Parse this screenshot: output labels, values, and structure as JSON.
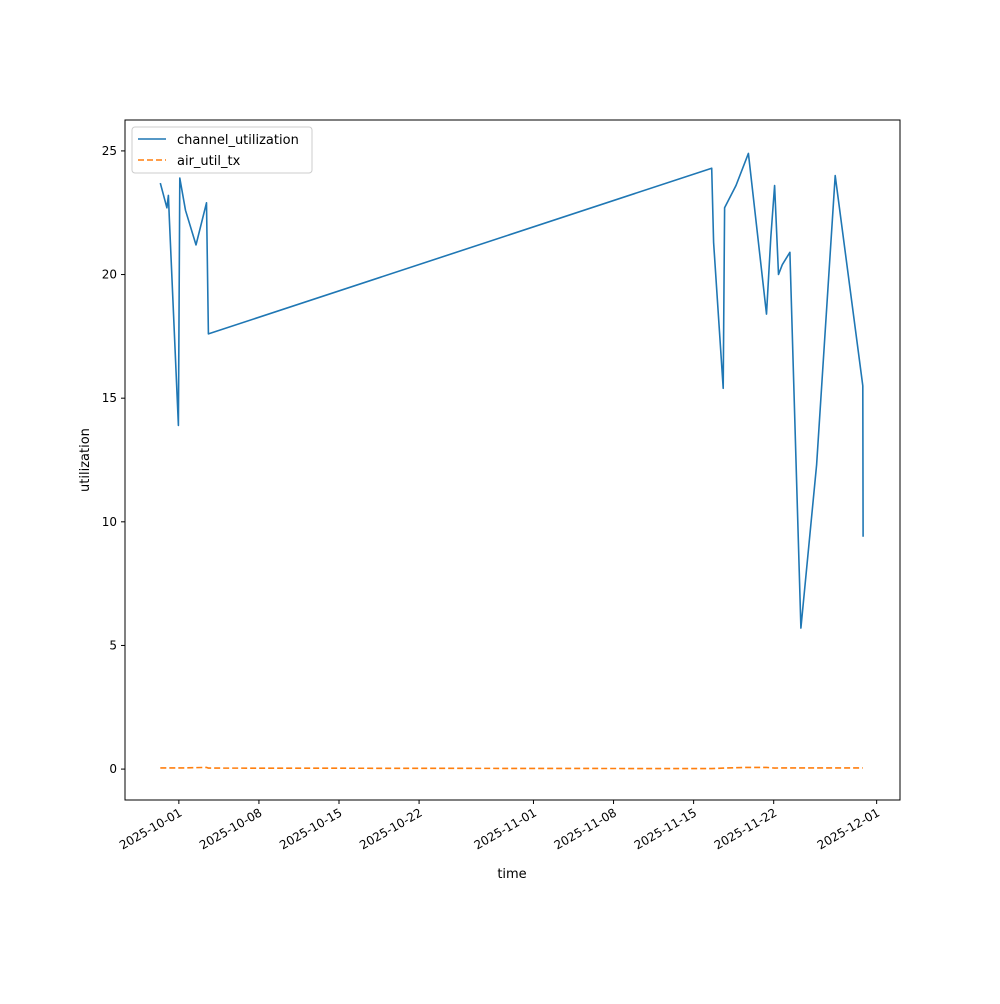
{
  "chart_data": {
    "type": "line",
    "title": "",
    "xlabel": "time",
    "ylabel": "utilization",
    "xlim": [
      "2025-09-26T07:00",
      "2025-12-03T01:00"
    ],
    "ylim": [
      -1.25,
      26.25
    ],
    "grid": false,
    "legend_position": "top-left",
    "x_ticks": [
      "2025-10-01",
      "2025-10-08",
      "2025-10-15",
      "2025-10-22",
      "2025-11-01",
      "2025-11-08",
      "2025-11-15",
      "2025-11-22",
      "2025-12-01"
    ],
    "y_ticks": [
      0,
      5,
      10,
      15,
      20,
      25
    ],
    "series": [
      {
        "name": "channel_utilization",
        "color": "#1f77b4",
        "dash": "solid",
        "points": [
          [
            "2025-09-29T09:00",
            23.7
          ],
          [
            "2025-09-29T23:00",
            22.7
          ],
          [
            "2025-09-30T02:00",
            23.2
          ],
          [
            "2025-09-30T04:00",
            22.3
          ],
          [
            "2025-09-30T23:00",
            13.9
          ],
          [
            "2025-10-01T02:00",
            23.9
          ],
          [
            "2025-10-01T14:00",
            22.6
          ],
          [
            "2025-10-02T12:00",
            21.2
          ],
          [
            "2025-10-03T10:00",
            22.9
          ],
          [
            "2025-10-03T14:00",
            17.6
          ],
          [
            "2025-11-16T14:00",
            24.3
          ],
          [
            "2025-11-16T18:00",
            21.3
          ],
          [
            "2025-11-17T14:00",
            15.4
          ],
          [
            "2025-11-17T17:00",
            22.7
          ],
          [
            "2025-11-18T17:00",
            23.6
          ],
          [
            "2025-11-19T19:00",
            24.9
          ],
          [
            "2025-11-21T09:00",
            18.4
          ],
          [
            "2025-11-21T18:00",
            21.5
          ],
          [
            "2025-11-22T02:00",
            23.6
          ],
          [
            "2025-11-22T10:00",
            20.0
          ],
          [
            "2025-11-22T18:00",
            20.4
          ],
          [
            "2025-11-23T10:00",
            20.9
          ],
          [
            "2025-11-24T09:00",
            5.7
          ],
          [
            "2025-11-25T18:00",
            12.3
          ],
          [
            "2025-11-27T09:00",
            24.0
          ],
          [
            "2025-11-29T19:00",
            15.5
          ],
          [
            "2025-11-29T19:30",
            9.4
          ]
        ]
      },
      {
        "name": "air_util_tx",
        "color": "#ff7f0e",
        "dash": "dashed",
        "points": [
          [
            "2025-09-29T09:00",
            0.05
          ],
          [
            "2025-10-01T12:00",
            0.05
          ],
          [
            "2025-10-03T10:00",
            0.07
          ],
          [
            "2025-10-03T14:00",
            0.04
          ],
          [
            "2025-11-16T14:00",
            0.02
          ],
          [
            "2025-11-18T00:00",
            0.05
          ],
          [
            "2025-11-19T19:00",
            0.07
          ],
          [
            "2025-11-21T09:00",
            0.07
          ],
          [
            "2025-11-22T02:00",
            0.04
          ],
          [
            "2025-11-22T18:00",
            0.05
          ],
          [
            "2025-11-24T09:00",
            0.05
          ],
          [
            "2025-11-27T09:00",
            0.05
          ],
          [
            "2025-11-29T19:00",
            0.05
          ]
        ]
      }
    ]
  }
}
